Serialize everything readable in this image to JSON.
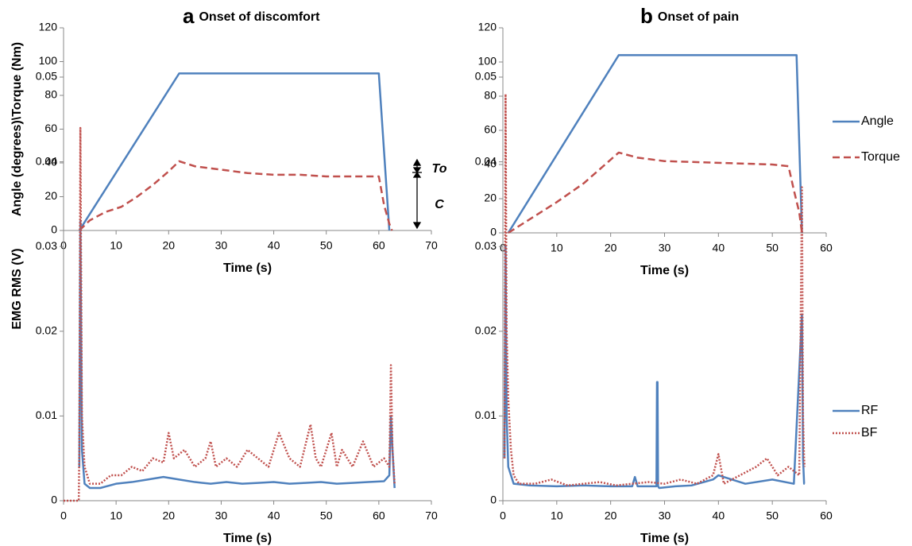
{
  "chart_data": [
    {
      "type": "line",
      "panel_label": "a",
      "title": "Onset of discomfort",
      "xlabel": "Time (s)",
      "ylabel": "Angle (degrees)\\Torque (Nm)",
      "xlim": [
        0,
        70
      ],
      "xticks": [
        0,
        10,
        20,
        30,
        40,
        50,
        60,
        70
      ],
      "ylim": [
        0,
        120
      ],
      "yticks": [
        0,
        20,
        40,
        60,
        80,
        100,
        120
      ],
      "annotations": [
        "To",
        "C"
      ],
      "series": [
        {
          "name": "Angle",
          "color": "#4f81bd",
          "style": "solid",
          "x": [
            3,
            22,
            60,
            62
          ],
          "values": [
            0,
            93,
            93,
            0
          ]
        },
        {
          "name": "Torque",
          "color": "#c0504d",
          "style": "dashed",
          "x": [
            3,
            5,
            8,
            11,
            14,
            17,
            20,
            22,
            25,
            30,
            35,
            40,
            45,
            50,
            55,
            58,
            60,
            61,
            62,
            62.5
          ],
          "values": [
            0,
            6,
            11,
            14,
            20,
            27,
            35,
            41,
            38,
            36,
            34,
            33,
            33,
            32,
            32,
            32,
            32,
            15,
            4,
            0
          ]
        }
      ]
    },
    {
      "type": "line",
      "panel_label": "b",
      "title": "Onset of pain",
      "xlabel": "Time (s)",
      "xlim": [
        0,
        60
      ],
      "xticks": [
        0,
        10,
        20,
        30,
        40,
        50,
        60
      ],
      "ylim": [
        0,
        120
      ],
      "yticks": [
        0,
        20,
        40,
        60,
        80,
        100,
        120
      ],
      "series": [
        {
          "name": "Angle",
          "color": "#4f81bd",
          "style": "solid",
          "x": [
            1,
            21.5,
            54.5,
            55.5
          ],
          "values": [
            0,
            104,
            104,
            0
          ]
        },
        {
          "name": "Torque",
          "color": "#c0504d",
          "style": "dashed",
          "x": [
            1,
            5,
            10,
            15,
            21.5,
            25,
            30,
            40,
            50,
            53,
            54,
            55,
            55.5
          ],
          "values": [
            0,
            8,
            18,
            29,
            47,
            44,
            42,
            41,
            40,
            39,
            25,
            12,
            0
          ]
        }
      ]
    },
    {
      "type": "line",
      "xlabel": "Time (s)",
      "ylabel": "EMG RMS (V)",
      "xlim": [
        0,
        70
      ],
      "xticks": [
        0,
        10,
        20,
        30,
        40,
        50,
        60,
        70
      ],
      "ylim": [
        0,
        0.05
      ],
      "yticks": [
        0,
        0.01,
        0.02,
        0.03,
        0.04,
        0.05
      ],
      "series": [
        {
          "name": "RF",
          "color": "#4f81bd",
          "style": "solid",
          "x": [
            3,
            3.2,
            3.5,
            4,
            5,
            7,
            10,
            13,
            16,
            19,
            22,
            25,
            28,
            31,
            34,
            37,
            40,
            43,
            46,
            49,
            52,
            55,
            58,
            61,
            62,
            62.3,
            62.6,
            63
          ],
          "values": [
            0.004,
            0.033,
            0.006,
            0.002,
            0.0015,
            0.0015,
            0.002,
            0.0022,
            0.0025,
            0.0028,
            0.0025,
            0.0022,
            0.002,
            0.0022,
            0.002,
            0.0021,
            0.0022,
            0.002,
            0.0021,
            0.0022,
            0.002,
            0.0021,
            0.0022,
            0.0023,
            0.003,
            0.01,
            0.006,
            0.0015
          ]
        },
        {
          "name": "BF",
          "color": "#c0504d",
          "style": "dotted",
          "x": [
            0,
            2.9,
            3,
            3.2,
            3.5,
            4,
            5,
            7,
            9,
            11,
            13,
            15,
            17,
            19,
            20,
            21,
            23,
            25,
            27,
            28,
            29,
            31,
            33,
            35,
            37,
            39,
            41,
            43,
            45,
            47,
            48,
            49,
            51,
            52,
            53,
            55,
            57,
            59,
            61,
            62,
            62.3,
            62.6,
            63
          ],
          "values": [
            0,
            0,
            0.006,
            0.044,
            0.01,
            0.004,
            0.002,
            0.002,
            0.003,
            0.003,
            0.004,
            0.0035,
            0.005,
            0.0045,
            0.008,
            0.005,
            0.006,
            0.004,
            0.005,
            0.007,
            0.004,
            0.005,
            0.004,
            0.006,
            0.005,
            0.004,
            0.008,
            0.005,
            0.004,
            0.009,
            0.005,
            0.004,
            0.008,
            0.004,
            0.006,
            0.004,
            0.007,
            0.004,
            0.005,
            0.004,
            0.016,
            0.006,
            0.002
          ]
        }
      ]
    },
    {
      "type": "line",
      "xlabel": "Time (s)",
      "xlim": [
        0,
        60
      ],
      "xticks": [
        0,
        10,
        20,
        30,
        40,
        50,
        60
      ],
      "ylim": [
        0,
        0.05
      ],
      "yticks": [
        0,
        0.01,
        0.02,
        0.03,
        0.04,
        0.05
      ],
      "series": [
        {
          "name": "RF",
          "color": "#4f81bd",
          "style": "solid",
          "x": [
            0.3,
            0.5,
            0.7,
            1,
            2,
            5,
            10,
            15,
            20,
            24,
            24.5,
            25,
            28.5,
            28.6,
            28.7,
            28.8,
            29,
            32,
            35,
            39,
            40,
            45,
            50,
            54,
            55.5,
            55.7,
            55.9,
            56
          ],
          "values": [
            0.005,
            0.03,
            0.01,
            0.004,
            0.002,
            0.0018,
            0.0017,
            0.0018,
            0.0017,
            0.0017,
            0.0028,
            0.0017,
            0.0017,
            0.014,
            0.014,
            0.0017,
            0.0015,
            0.0017,
            0.0018,
            0.0025,
            0.003,
            0.002,
            0.0025,
            0.002,
            0.022,
            0.005,
            0.002,
            0.002
          ]
        },
        {
          "name": "BF",
          "color": "#c0504d",
          "style": "dotted",
          "x": [
            0.3,
            0.5,
            0.7,
            1,
            1.5,
            2,
            3,
            6,
            9,
            12,
            15,
            18,
            21,
            24,
            27,
            30,
            33,
            36,
            39,
            40,
            41,
            44,
            47,
            49,
            51,
            53,
            55,
            55.5,
            55.7,
            55.9,
            56
          ],
          "values": [
            0.005,
            0.048,
            0.02,
            0.012,
            0.006,
            0.003,
            0.002,
            0.002,
            0.0025,
            0.0018,
            0.002,
            0.0022,
            0.0018,
            0.002,
            0.0022,
            0.002,
            0.0025,
            0.002,
            0.003,
            0.0055,
            0.002,
            0.003,
            0.004,
            0.005,
            0.003,
            0.004,
            0.003,
            0.037,
            0.01,
            0.005,
            0.004
          ]
        }
      ]
    }
  ]
}
